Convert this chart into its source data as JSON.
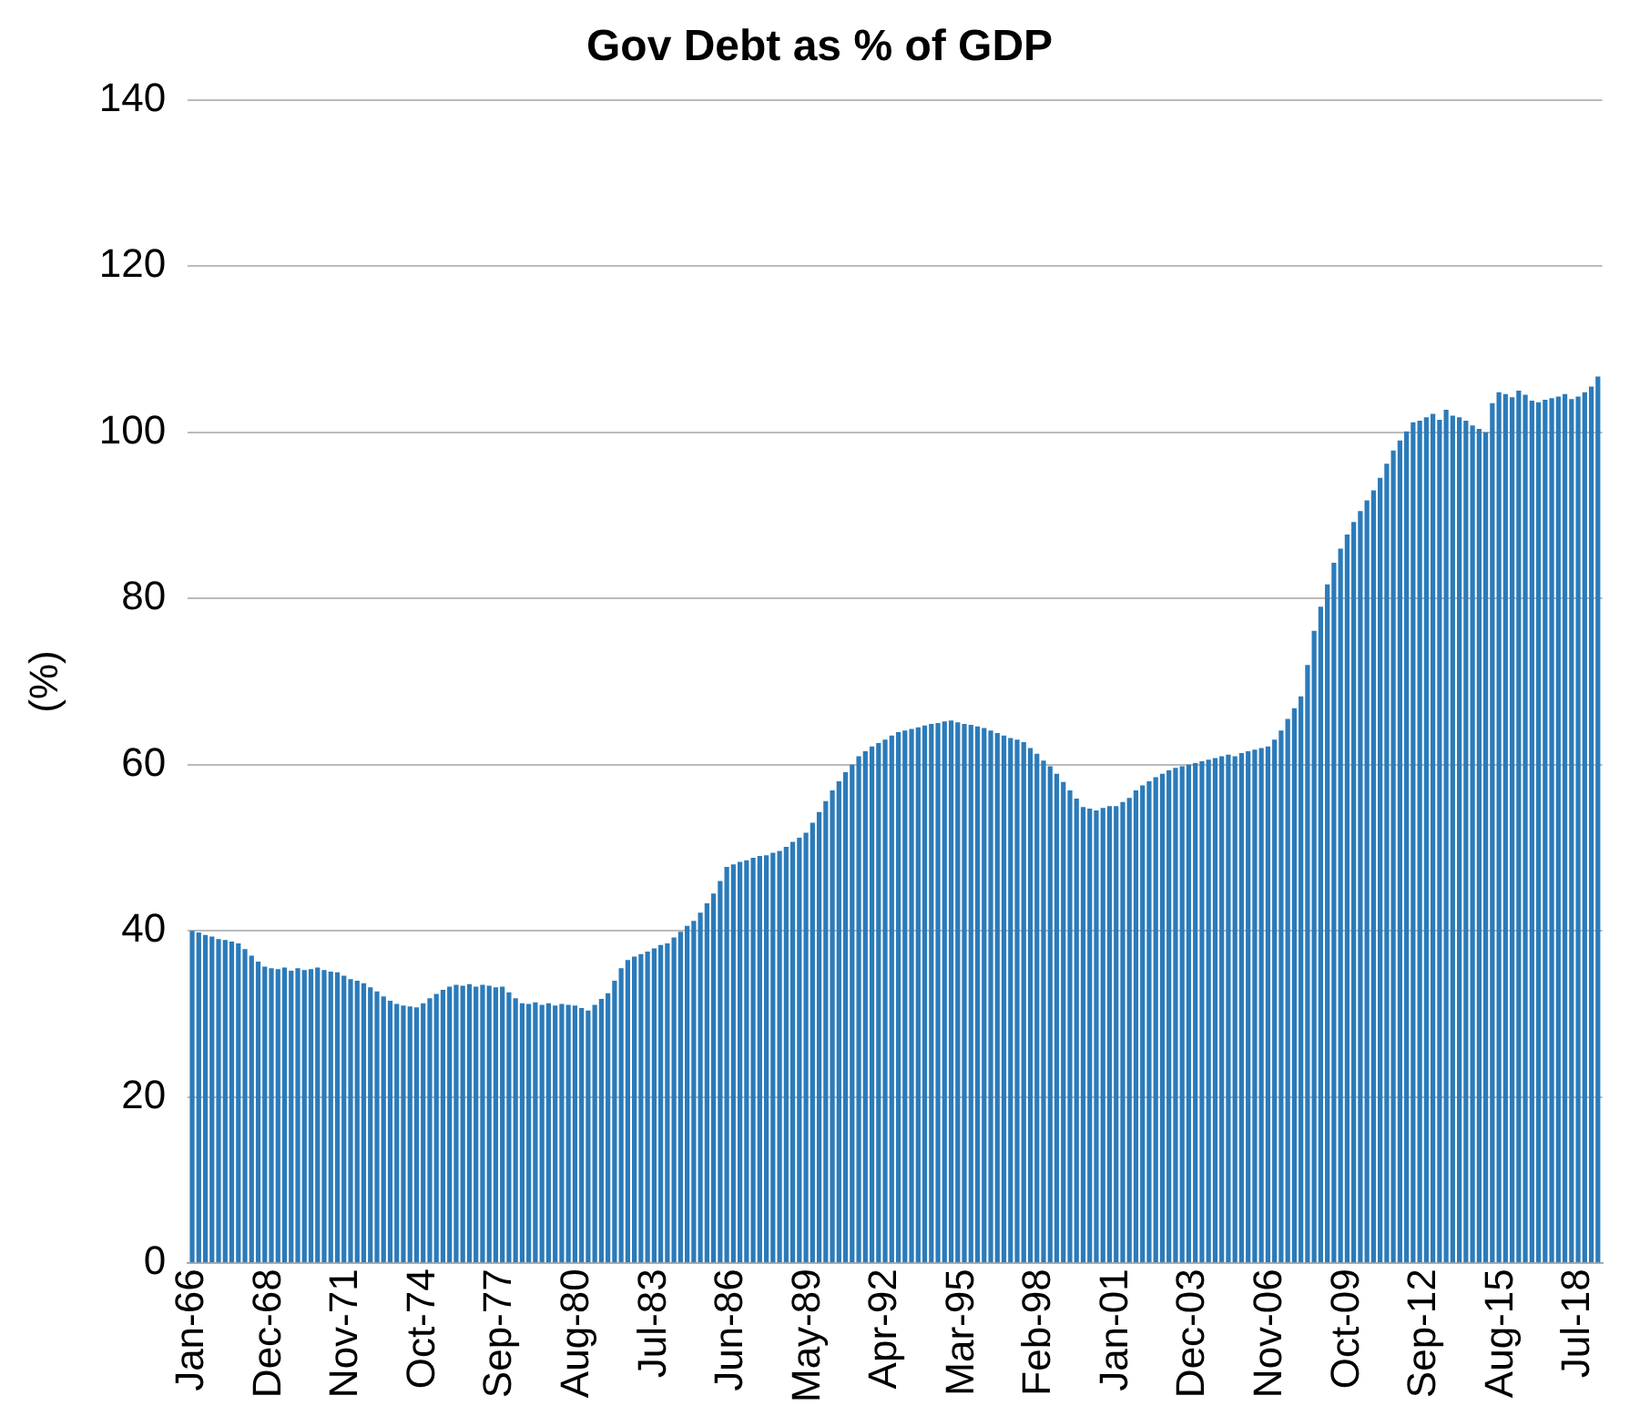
{
  "chart_data": {
    "type": "bar",
    "title": "Gov Debt as % of GDP",
    "ylabel": "(%)",
    "x": [
      "1966-01",
      "1966-04",
      "1966-07",
      "1966-10",
      "1967-01",
      "1967-04",
      "1967-07",
      "1967-10",
      "1968-01",
      "1968-04",
      "1968-07",
      "1968-10",
      "1969-01",
      "1969-04",
      "1969-07",
      "1969-10",
      "1970-01",
      "1970-04",
      "1970-07",
      "1970-10",
      "1971-01",
      "1971-04",
      "1971-07",
      "1971-10",
      "1972-01",
      "1972-04",
      "1972-07",
      "1972-10",
      "1973-01",
      "1973-04",
      "1973-07",
      "1973-10",
      "1974-01",
      "1974-04",
      "1974-07",
      "1974-10",
      "1975-01",
      "1975-04",
      "1975-07",
      "1975-10",
      "1976-01",
      "1976-04",
      "1976-07",
      "1976-10",
      "1977-01",
      "1977-04",
      "1977-07",
      "1977-10",
      "1978-01",
      "1978-04",
      "1978-07",
      "1978-10",
      "1979-01",
      "1979-04",
      "1979-07",
      "1979-10",
      "1980-01",
      "1980-04",
      "1980-07",
      "1980-10",
      "1981-01",
      "1981-04",
      "1981-07",
      "1981-10",
      "1982-01",
      "1982-04",
      "1982-07",
      "1982-10",
      "1983-01",
      "1983-04",
      "1983-07",
      "1983-10",
      "1984-01",
      "1984-04",
      "1984-07",
      "1984-10",
      "1985-01",
      "1985-04",
      "1985-07",
      "1985-10",
      "1986-01",
      "1986-04",
      "1986-07",
      "1986-10",
      "1987-01",
      "1987-04",
      "1987-07",
      "1987-10",
      "1988-01",
      "1988-04",
      "1988-07",
      "1988-10",
      "1989-01",
      "1989-04",
      "1989-07",
      "1989-10",
      "1990-01",
      "1990-04",
      "1990-07",
      "1990-10",
      "1991-01",
      "1991-04",
      "1991-07",
      "1991-10",
      "1992-01",
      "1992-04",
      "1992-07",
      "1992-10",
      "1993-01",
      "1993-04",
      "1993-07",
      "1993-10",
      "1994-01",
      "1994-04",
      "1994-07",
      "1994-10",
      "1995-01",
      "1995-04",
      "1995-07",
      "1995-10",
      "1996-01",
      "1996-04",
      "1996-07",
      "1996-10",
      "1997-01",
      "1997-04",
      "1997-07",
      "1997-10",
      "1998-01",
      "1998-04",
      "1998-07",
      "1998-10",
      "1999-01",
      "1999-04",
      "1999-07",
      "1999-10",
      "2000-01",
      "2000-04",
      "2000-07",
      "2000-10",
      "2001-01",
      "2001-04",
      "2001-07",
      "2001-10",
      "2002-01",
      "2002-04",
      "2002-07",
      "2002-10",
      "2003-01",
      "2003-04",
      "2003-07",
      "2003-10",
      "2004-01",
      "2004-04",
      "2004-07",
      "2004-10",
      "2005-01",
      "2005-04",
      "2005-07",
      "2005-10",
      "2006-01",
      "2006-04",
      "2006-07",
      "2006-10",
      "2007-01",
      "2007-04",
      "2007-07",
      "2007-10",
      "2008-01",
      "2008-04",
      "2008-07",
      "2008-10",
      "2009-01",
      "2009-04",
      "2009-07",
      "2009-10",
      "2010-01",
      "2010-04",
      "2010-07",
      "2010-10",
      "2011-01",
      "2011-04",
      "2011-07",
      "2011-10",
      "2012-01",
      "2012-04",
      "2012-07",
      "2012-10",
      "2013-01",
      "2013-04",
      "2013-07",
      "2013-10",
      "2014-01",
      "2014-04",
      "2014-07",
      "2014-10",
      "2015-01",
      "2015-04",
      "2015-07",
      "2015-10",
      "2016-01",
      "2016-04",
      "2016-07",
      "2016-10",
      "2017-01",
      "2017-04",
      "2017-07",
      "2017-10",
      "2018-01",
      "2018-04",
      "2018-07",
      "2018-10",
      "2019-01",
      "2019-04"
    ],
    "values": [
      40,
      39.8,
      39.5,
      39.3,
      39,
      38.9,
      38.7,
      38.5,
      37.8,
      37,
      36.3,
      35.7,
      35.5,
      35.4,
      35.6,
      35.2,
      35.5,
      35.3,
      35.4,
      35.6,
      35.3,
      35.1,
      35,
      34.6,
      34.2,
      34,
      33.7,
      33.2,
      32.7,
      32.1,
      31.6,
      31.2,
      31,
      30.9,
      30.8,
      31.3,
      31.9,
      32.4,
      32.9,
      33.3,
      33.5,
      33.4,
      33.6,
      33.3,
      33.5,
      33.4,
      33.2,
      33.3,
      32.6,
      31.9,
      31.3,
      31.2,
      31.4,
      31.1,
      31.3,
      31,
      31.2,
      31.1,
      31,
      30.7,
      30.4,
      31.1,
      31.8,
      32.5,
      34,
      35.5,
      36.5,
      36.9,
      37.2,
      37.5,
      37.9,
      38.3,
      38.5,
      39.2,
      39.9,
      40.6,
      41.2,
      42.2,
      43.3,
      44.5,
      46,
      47.7,
      48,
      48.3,
      48.5,
      48.8,
      49,
      49.1,
      49.4,
      49.6,
      50.1,
      50.7,
      51.2,
      51.8,
      53,
      54.3,
      55.6,
      56.9,
      58,
      59.1,
      60,
      61,
      61.6,
      62.2,
      62.6,
      63,
      63.5,
      63.9,
      64.1,
      64.3,
      64.5,
      64.7,
      64.9,
      65,
      65.2,
      65.3,
      65.1,
      64.9,
      64.8,
      64.6,
      64.4,
      64.1,
      63.8,
      63.5,
      63.2,
      63,
      62.7,
      62,
      61.3,
      60.5,
      59.8,
      58.9,
      57.9,
      56.9,
      55.9,
      54.9,
      54.7,
      54.5,
      54.8,
      55,
      55,
      55.5,
      56,
      56.9,
      57.5,
      58,
      58.5,
      58.9,
      59.3,
      59.6,
      59.8,
      60,
      60.2,
      60.4,
      60.6,
      60.8,
      61,
      61.2,
      61,
      61.4,
      61.6,
      61.8,
      62,
      62.2,
      63,
      64.1,
      65.5,
      66.8,
      68.2,
      72,
      76.1,
      79,
      81.7,
      84.3,
      86,
      87.7,
      89.2,
      90.5,
      91.8,
      93,
      94.5,
      96.2,
      97.8,
      99,
      100.1,
      101.2,
      101.4,
      101.8,
      102.2,
      101.5,
      102.7,
      102,
      101.8,
      101.4,
      100.8,
      100.4,
      100,
      103.5,
      104.8,
      104.6,
      104.2,
      105,
      104.5,
      103.8,
      103.6,
      103.9,
      104.1,
      104.3,
      104.6,
      104,
      104.3,
      104.8,
      105.5,
      106.7
    ],
    "color": "#2b7bba",
    "xlim": [
      "1965-11",
      "2019-06"
    ],
    "xticks": [
      {
        "value": "1966-01",
        "label": "Jan-66"
      },
      {
        "value": "1968-12",
        "label": "Dec-68"
      },
      {
        "value": "1971-11",
        "label": "Nov-71"
      },
      {
        "value": "1974-10",
        "label": "Oct-74"
      },
      {
        "value": "1977-09",
        "label": "Sep-77"
      },
      {
        "value": "1980-08",
        "label": "Aug-80"
      },
      {
        "value": "1983-07",
        "label": "Jul-83"
      },
      {
        "value": "1986-06",
        "label": "Jun-86"
      },
      {
        "value": "1989-05",
        "label": "May-89"
      },
      {
        "value": "1992-04",
        "label": "Apr-92"
      },
      {
        "value": "1995-03",
        "label": "Mar-95"
      },
      {
        "value": "1998-02",
        "label": "Feb-98"
      },
      {
        "value": "2001-01",
        "label": "Jan-01"
      },
      {
        "value": "2003-12",
        "label": "Dec-03"
      },
      {
        "value": "2006-11",
        "label": "Nov-06"
      },
      {
        "value": "2009-10",
        "label": "Oct-09"
      },
      {
        "value": "2012-09",
        "label": "Sep-12"
      },
      {
        "value": "2015-08",
        "label": "Aug-15"
      },
      {
        "value": "2018-07",
        "label": "Jul-18"
      }
    ],
    "ylim": [
      0,
      140
    ],
    "yticks": [
      0,
      20,
      40,
      60,
      80,
      100,
      120,
      140
    ],
    "grid": "y",
    "legend": false
  }
}
